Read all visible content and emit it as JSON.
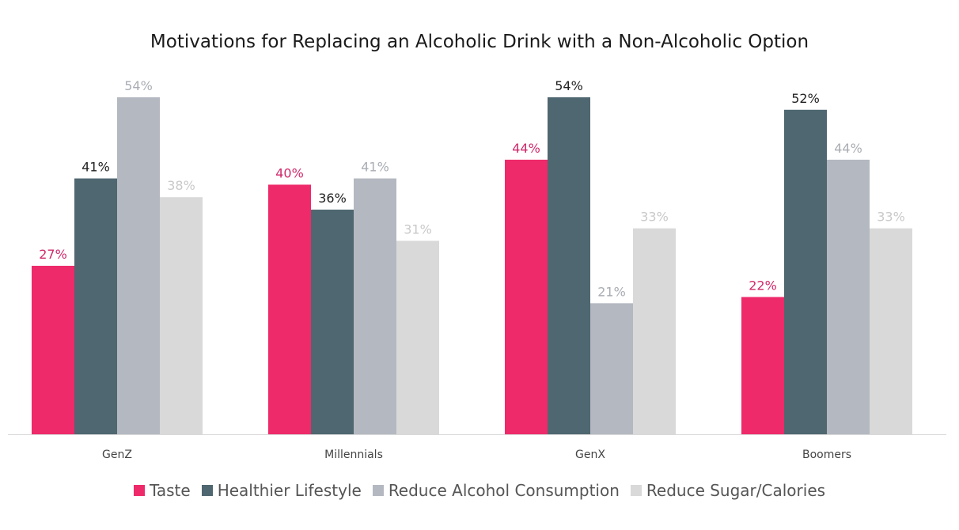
{
  "chart_data": {
    "type": "bar",
    "title": "Motivations for Replacing an Alcoholic Drink with a Non-Alcoholic Option",
    "xlabel": "",
    "ylabel": "",
    "ylim": [
      0,
      60
    ],
    "categories": [
      "GenZ",
      "Millennials",
      "GenX",
      "Boomers"
    ],
    "series": [
      {
        "name": "Taste",
        "color": "#ee2a6b",
        "label_color": "#d0296a",
        "values": [
          27,
          40,
          44,
          22
        ],
        "labels": [
          "27%",
          "40%",
          "44%",
          "22%"
        ]
      },
      {
        "name": "Healthier Lifestyle",
        "color": "#4f6770",
        "label_color": "#222222",
        "values": [
          41,
          36,
          54,
          52
        ],
        "labels": [
          "41%",
          "36%",
          "54%",
          "52%"
        ]
      },
      {
        "name": "Reduce Alcohol Consumption",
        "color": "#b4b8c0",
        "label_color": "#a9adb3",
        "values": [
          54,
          41,
          21,
          44
        ],
        "labels": [
          "54%",
          "41%",
          "21%",
          "44%"
        ]
      },
      {
        "name": "Reduce Sugar/Calories",
        "color": "#d9d9d9",
        "label_color": "#c9c9c9",
        "values": [
          38,
          31,
          33,
          33
        ],
        "labels": [
          "38%",
          "31%",
          "33%",
          "33%"
        ]
      }
    ],
    "legend_position": "bottom",
    "grid": false
  }
}
